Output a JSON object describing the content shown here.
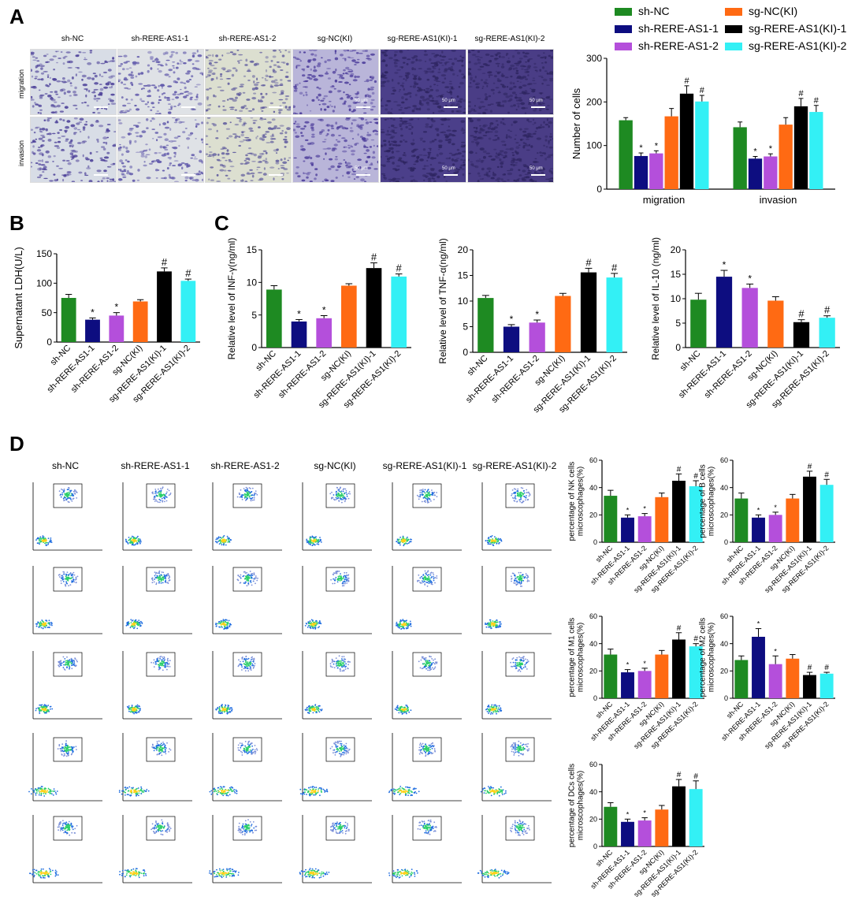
{
  "panels": {
    "A": "A",
    "B": "B",
    "C": "C",
    "D": "D"
  },
  "colors": {
    "sh-NC": "#1e8a22",
    "sh-RERE-AS1-1": "#0d0d80",
    "sh-RERE-AS1-2": "#b44fdb",
    "sg-NC(KI)": "#ff6a13",
    "sg-RERE-AS1(KI)-1": "#000000",
    "sg-RERE-AS1(KI)-2": "#33f0f5"
  },
  "groups": [
    "sh-NC",
    "sh-RERE-AS1-1",
    "sh-RERE-AS1-2",
    "sg-NC(KI)",
    "sg-RERE-AS1(KI)-1",
    "sg-RERE-AS1(KI)-2"
  ],
  "micrographs": {
    "titles": [
      "sh-NC",
      "sh-RERE-AS1-1",
      "sh-RERE-AS1-2",
      "sg-NC(KI)",
      "sg-RERE-AS1(KI)-1",
      "sg-RERE-AS1(KI)-2"
    ],
    "rows": [
      "migration",
      "invasion"
    ],
    "scale_label": "50 μm"
  },
  "flow": {
    "titles": [
      "sh-NC",
      "sh-RERE-AS1-1",
      "sh-RERE-AS1-2",
      "sg-NC(KI)",
      "sg-RERE-AS1(KI)-1",
      "sg-RERE-AS1(KI)-2"
    ]
  },
  "chart_data": [
    {
      "id": "A",
      "type": "bar",
      "categories": [
        "migration",
        "invasion"
      ],
      "ylabel": "Number of cells",
      "ylim": [
        0,
        300
      ],
      "yticks": [
        0,
        100,
        200,
        300
      ],
      "series": [
        {
          "name": "sh-NC",
          "values": [
            158,
            142
          ],
          "err": [
            6,
            12
          ],
          "mark": [
            "",
            ""
          ]
        },
        {
          "name": "sh-RERE-AS1-1",
          "values": [
            76,
            70
          ],
          "err": [
            7,
            5
          ],
          "mark": [
            "*",
            "*"
          ]
        },
        {
          "name": "sh-RERE-AS1-2",
          "values": [
            82,
            75
          ],
          "err": [
            6,
            6
          ],
          "mark": [
            "*",
            "*"
          ]
        },
        {
          "name": "sg-NC(KI)",
          "values": [
            167,
            148
          ],
          "err": [
            18,
            16
          ],
          "mark": [
            "",
            ""
          ]
        },
        {
          "name": "sg-RERE-AS1(KI)-1",
          "values": [
            219,
            190
          ],
          "err": [
            18,
            18
          ],
          "mark": [
            "#",
            "#"
          ]
        },
        {
          "name": "sg-RERE-AS1(KI)-2",
          "values": [
            201,
            177
          ],
          "err": [
            14,
            15
          ],
          "mark": [
            "#",
            "#"
          ]
        }
      ],
      "legend": "top"
    },
    {
      "id": "B",
      "type": "bar",
      "ylabel": "Supernatant LDH(U/L)",
      "ylim": [
        0,
        150
      ],
      "yticks": [
        0,
        50,
        100,
        150
      ],
      "values": [
        75,
        38,
        45,
        69,
        120,
        104
      ],
      "err": [
        6,
        3,
        5,
        3,
        6,
        3
      ],
      "mark": [
        "",
        "*",
        "*",
        "",
        "#",
        "#"
      ]
    },
    {
      "id": "C1",
      "type": "bar",
      "ylabel": "Relative level of INF-γ(ng/ml)",
      "ylim": [
        0,
        15
      ],
      "yticks": [
        0,
        5,
        10,
        15
      ],
      "values": [
        8.9,
        4.0,
        4.5,
        9.5,
        12.2,
        10.9
      ],
      "err": [
        0.6,
        0.3,
        0.4,
        0.3,
        0.8,
        0.4
      ],
      "mark": [
        "",
        "*",
        "*",
        "",
        "#",
        "#"
      ]
    },
    {
      "id": "C2",
      "type": "bar",
      "ylabel": "Relative level of TNF-α(ng/ml)",
      "ylim": [
        0,
        20
      ],
      "yticks": [
        0,
        5,
        10,
        15,
        20
      ],
      "values": [
        10.6,
        5.0,
        5.8,
        11.0,
        15.6,
        14.6
      ],
      "err": [
        0.5,
        0.4,
        0.5,
        0.5,
        0.8,
        0.8
      ],
      "mark": [
        "",
        "*",
        "*",
        "",
        "#",
        "#"
      ]
    },
    {
      "id": "C3",
      "type": "bar",
      "ylabel": "Relative level of IL-10 (ng/ml)",
      "ylim": [
        0,
        20
      ],
      "yticks": [
        0,
        5,
        10,
        15,
        20
      ],
      "values": [
        9.8,
        14.5,
        12.2,
        9.6,
        5.2,
        6.1
      ],
      "err": [
        1.3,
        1.3,
        0.8,
        0.8,
        0.5,
        0.4
      ],
      "mark": [
        "",
        "*",
        "*",
        "",
        "#",
        "#"
      ]
    },
    {
      "id": "D1",
      "type": "bar",
      "ylabel": "percentage of NK cells microscophages(%)",
      "ylim": [
        0,
        60
      ],
      "yticks": [
        0,
        20,
        40,
        60
      ],
      "values": [
        34,
        18,
        19,
        33,
        45,
        41
      ],
      "err": [
        4,
        2,
        2,
        3,
        5,
        4
      ],
      "mark": [
        "",
        "*",
        "*",
        "",
        "#",
        "#"
      ]
    },
    {
      "id": "D2",
      "type": "bar",
      "ylabel": "percentage of B cells microscophages(%)",
      "ylim": [
        0,
        60
      ],
      "yticks": [
        0,
        20,
        40,
        60
      ],
      "values": [
        32,
        18,
        20,
        32,
        48,
        42
      ],
      "err": [
        4,
        2,
        2,
        3,
        4,
        4
      ],
      "mark": [
        "",
        "*",
        "*",
        "",
        "#",
        "#"
      ]
    },
    {
      "id": "D3",
      "type": "bar",
      "ylabel": "percentage of M1 cells microscophages(%)",
      "ylim": [
        0,
        60
      ],
      "yticks": [
        0,
        20,
        40,
        60
      ],
      "values": [
        32,
        19,
        20,
        32,
        43,
        38
      ],
      "err": [
        4,
        2,
        2,
        3,
        5,
        2
      ],
      "mark": [
        "",
        "*",
        "*",
        "",
        "#",
        "#"
      ]
    },
    {
      "id": "D4",
      "type": "bar",
      "ylabel": "percentage of M2 cells microscophages(%)",
      "ylim": [
        0,
        60
      ],
      "yticks": [
        0,
        20,
        40,
        60
      ],
      "values": [
        28,
        45,
        25,
        29,
        17,
        18
      ],
      "err": [
        3,
        6,
        6,
        3,
        2,
        1
      ],
      "mark": [
        "",
        "*",
        "*",
        "",
        "#",
        "#"
      ]
    },
    {
      "id": "D5",
      "type": "bar",
      "ylabel": "percentage of DCs cells microscophages(%)",
      "ylim": [
        0,
        60
      ],
      "yticks": [
        0,
        20,
        40,
        60
      ],
      "values": [
        29,
        18,
        19,
        27,
        44,
        42
      ],
      "err": [
        3,
        2,
        2,
        3,
        5,
        6
      ],
      "mark": [
        "",
        "*",
        "*",
        "",
        "#",
        "#"
      ]
    }
  ]
}
